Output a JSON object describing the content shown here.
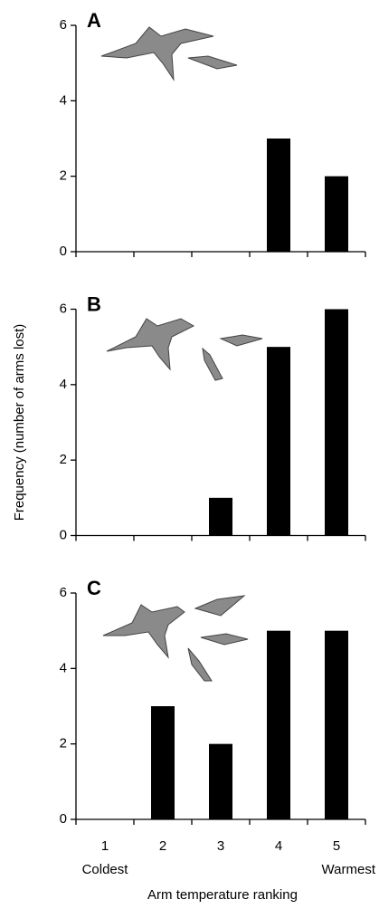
{
  "chart_data": [
    {
      "type": "bar",
      "title": "A",
      "values": [
        0,
        0,
        0,
        3,
        2
      ],
      "color": "#000000",
      "ylim": [
        0,
        6
      ],
      "yticks": [
        0,
        2,
        4,
        6
      ]
    },
    {
      "type": "bar",
      "title": "B",
      "values": [
        0,
        0,
        1,
        5,
        6
      ],
      "color": "#000000",
      "ylim": [
        0,
        6
      ],
      "yticks": [
        0,
        2,
        4,
        6
      ],
      "y_label": "Frequency (number of arms lost)"
    },
    {
      "type": "bar",
      "title": "C",
      "values": [
        0,
        3,
        2,
        5,
        5
      ],
      "color": "#000000",
      "ylim": [
        0,
        6
      ],
      "yticks": [
        0,
        2,
        4,
        6
      ],
      "categories": [
        "1",
        "2",
        "3",
        "4",
        "5"
      ],
      "x_end_labels": [
        "Coldest",
        "Warmest"
      ],
      "x_label": "Arm temperature ranking"
    }
  ]
}
